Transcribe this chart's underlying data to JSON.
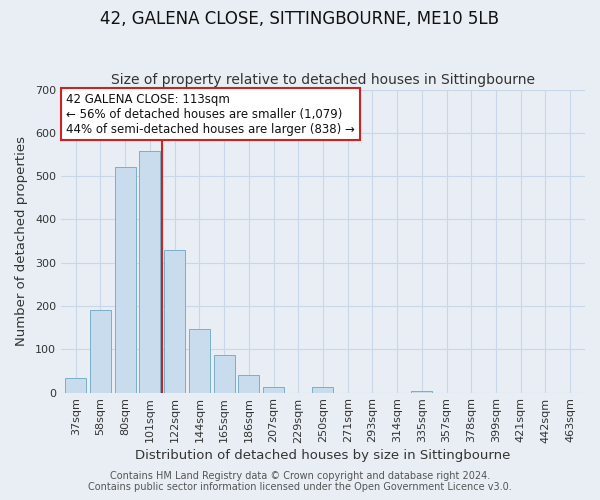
{
  "title": "42, GALENA CLOSE, SITTINGBOURNE, ME10 5LB",
  "subtitle": "Size of property relative to detached houses in Sittingbourne",
  "xlabel": "Distribution of detached houses by size in Sittingbourne",
  "ylabel": "Number of detached properties",
  "bar_labels": [
    "37sqm",
    "58sqm",
    "80sqm",
    "101sqm",
    "122sqm",
    "144sqm",
    "165sqm",
    "186sqm",
    "207sqm",
    "229sqm",
    "250sqm",
    "271sqm",
    "293sqm",
    "314sqm",
    "335sqm",
    "357sqm",
    "378sqm",
    "399sqm",
    "421sqm",
    "442sqm",
    "463sqm"
  ],
  "bar_values": [
    33,
    190,
    520,
    558,
    330,
    147,
    87,
    40,
    12,
    0,
    12,
    0,
    0,
    0,
    4,
    0,
    0,
    0,
    0,
    0,
    0
  ],
  "bar_color": "#c8dced",
  "bar_edge_color": "#7aaec8",
  "ylim": [
    0,
    700
  ],
  "yticks": [
    0,
    100,
    200,
    300,
    400,
    500,
    600,
    700
  ],
  "vline_x": 3.5,
  "vline_color": "#cc2222",
  "annotation_box_text": "42 GALENA CLOSE: 113sqm\n← 56% of detached houses are smaller (1,079)\n44% of semi-detached houses are larger (838) →",
  "footer_line1": "Contains HM Land Registry data © Crown copyright and database right 2024.",
  "footer_line2": "Contains public sector information licensed under the Open Government Licence v3.0.",
  "bg_color": "#e8eef4",
  "plot_bg_color": "#e8eef4",
  "grid_color": "#c8d8e8",
  "title_fontsize": 12,
  "subtitle_fontsize": 10,
  "axis_label_fontsize": 9.5,
  "tick_fontsize": 8,
  "annotation_fontsize": 8.5,
  "footer_fontsize": 7
}
